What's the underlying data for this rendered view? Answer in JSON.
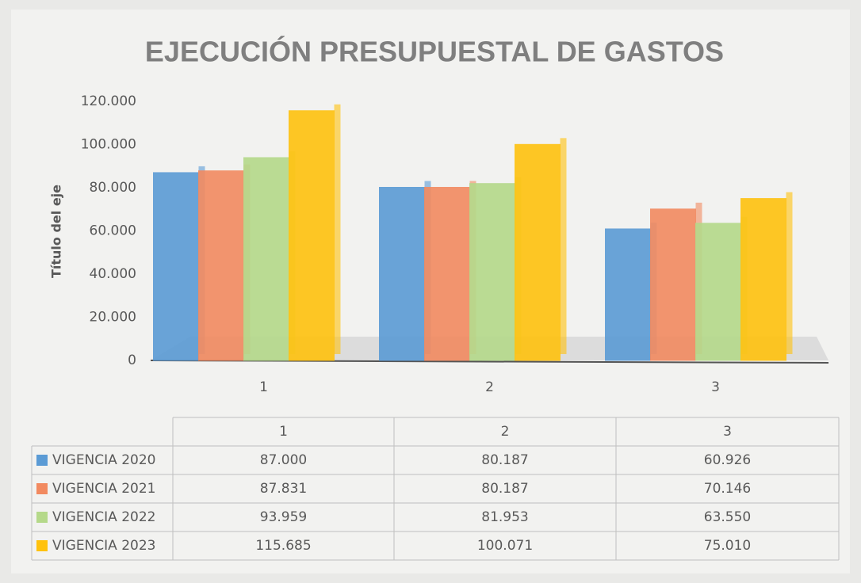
{
  "chart_data": {
    "type": "bar",
    "title": "EJECUCIÓN PRESUPUESTAL DE GASTOS",
    "y_axis_label": "Título del eje",
    "categories": [
      "1",
      "2",
      "3"
    ],
    "series": [
      {
        "name": "VIGENCIA 2020",
        "color": "#5b9bd5",
        "values": [
          87000,
          80187,
          60926
        ],
        "value_labels": [
          "87.000",
          "80.187",
          "60.926"
        ]
      },
      {
        "name": "VIGENCIA 2021",
        "color": "#f28a60",
        "values": [
          87831,
          80187,
          70146
        ],
        "value_labels": [
          "87.831",
          "80.187",
          "70.146"
        ]
      },
      {
        "name": "VIGENCIA 2022",
        "color": "#b5d98a",
        "values": [
          93959,
          81953,
          63550
        ],
        "value_labels": [
          "93.959",
          "81.953",
          "63.550"
        ]
      },
      {
        "name": "VIGENCIA 2023",
        "color": "#ffc20e",
        "values": [
          115685,
          100071,
          75010
        ],
        "value_labels": [
          "115.685",
          "100.071",
          "75.010"
        ]
      }
    ],
    "ylim": [
      0,
      120000
    ],
    "yticks": [
      0,
      {
        "value": 20000,
        "label": "20.000"
      },
      {
        "value": 40000,
        "label": "40.000"
      },
      {
        "value": 60000,
        "label": "60.000"
      },
      {
        "value": 80000,
        "label": "80.000"
      },
      {
        "value": 100000,
        "label": "100.000"
      },
      {
        "value": 120000,
        "label": "120.000"
      }
    ],
    "grid": false
  }
}
